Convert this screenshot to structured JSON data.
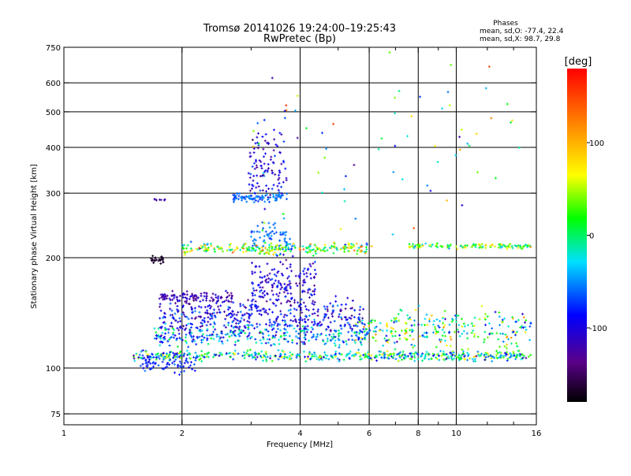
{
  "chart_data": {
    "type": "scatter",
    "title": "Tromsø 20141026 19:24:00–19:25:43",
    "subtitle": "RwPretec (Bp)",
    "xlabel": "Frequency [MHz]",
    "ylabel": "Stationary phase Virtual Height [km]",
    "x_scale": "log",
    "y_scale": "log",
    "xlim": [
      1,
      16
    ],
    "ylim": [
      70,
      750
    ],
    "x_ticks": [
      1,
      2,
      4,
      6,
      8,
      10,
      16
    ],
    "x_tick_labels": [
      "1",
      "2",
      "4",
      "6",
      "8",
      "10",
      "16"
    ],
    "x_minor_ticks": [
      3,
      5,
      7,
      9,
      12,
      14
    ],
    "y_ticks": [
      75,
      100,
      200,
      300,
      400,
      500,
      600,
      750
    ],
    "y_tick_labels": [
      "75",
      "100",
      "200",
      "300",
      "400",
      "500",
      "600",
      "750"
    ],
    "grid": true,
    "stats": {
      "header": "Phases",
      "line_o": "mean, sd,O: -77.4, 22.4",
      "line_x": "mean, sd,X:  98.7, 29.8"
    },
    "colorbar": {
      "label": "[deg]",
      "range": [
        -180,
        180
      ],
      "ticks": [
        100,
        0,
        -100
      ],
      "tick_labels": [
        "100",
        "0",
        "-100"
      ]
    },
    "series": [
      {
        "x_range": [
          1.5,
          15.5
        ],
        "y_center": 108,
        "spread": 0.012,
        "count": 520,
        "phase": [
          -140,
          100
        ]
      },
      {
        "x_range": [
          1.55,
          2.2
        ],
        "y_center": 103,
        "spread": 0.02,
        "count": 80,
        "phase": [
          -110,
          -50
        ]
      },
      {
        "x_range": [
          1.7,
          6.0
        ],
        "y_center": 123,
        "spread": 0.025,
        "count": 320,
        "phase": [
          -140,
          40
        ]
      },
      {
        "x_range": [
          1.75,
          5.8
        ],
        "y_center": 138,
        "spread": 0.04,
        "count": 380,
        "phase": [
          -150,
          -40
        ]
      },
      {
        "x_range": [
          1.75,
          2.7
        ],
        "y_center": 156,
        "spread": 0.012,
        "count": 110,
        "phase": [
          -150,
          -90
        ]
      },
      {
        "x_range": [
          3.0,
          4.4
        ],
        "y_center": 170,
        "spread": 0.06,
        "count": 180,
        "phase": [
          -150,
          -60
        ]
      },
      {
        "x_range": [
          5.5,
          15.5
        ],
        "y_center": 128,
        "spread": 0.045,
        "count": 260,
        "phase": [
          -140,
          140
        ]
      },
      {
        "x_range": [
          2.0,
          6.0
        ],
        "y_center": 212,
        "spread": 0.012,
        "count": 260,
        "phase": [
          -90,
          160
        ]
      },
      {
        "x_range": [
          3.0,
          3.8
        ],
        "y_center": 228,
        "spread": 0.035,
        "count": 60,
        "phase": [
          -80,
          -40
        ]
      },
      {
        "x_range": [
          7.5,
          15.5
        ],
        "y_center": 215,
        "spread": 0.006,
        "count": 120,
        "phase": [
          -60,
          120
        ]
      },
      {
        "x_range": [
          2.7,
          3.7
        ],
        "y_center": 292,
        "spread": 0.01,
        "count": 90,
        "phase": [
          -80,
          -40
        ]
      },
      {
        "x_range": [
          2.95,
          3.7
        ],
        "y_center": 360,
        "spread": 0.09,
        "count": 110,
        "phase": [
          -160,
          -50
        ]
      },
      {
        "x_range": [
          1.65,
          1.8
        ],
        "y_center": 198,
        "spread": 0.01,
        "count": 25,
        "phase": [
          -175,
          -160
        ]
      },
      {
        "x_range": [
          1.7,
          1.85
        ],
        "y_center": 288,
        "spread": 0.003,
        "count": 8,
        "phase": [
          -130,
          -110
        ]
      },
      {
        "x_range": [
          3.0,
          15.0
        ],
        "y_center": 400,
        "spread": 0.25,
        "count": 70,
        "phase": [
          -150,
          160
        ]
      }
    ]
  }
}
